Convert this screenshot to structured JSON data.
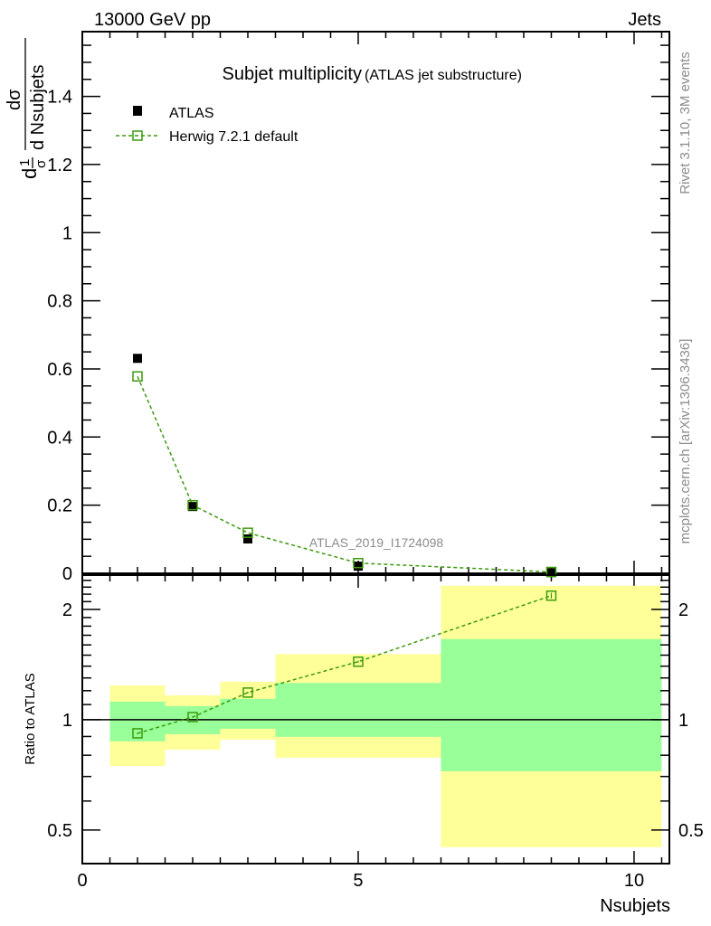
{
  "header": {
    "left": "13000 GeV pp",
    "right": "Jets"
  },
  "side_labels": {
    "rivet": "Rivet 3.1.10,  3M events",
    "mcplots": "mcplots.cern.ch [arXiv:1306.3436]"
  },
  "watermark": "ATLAS_2019_I1724098",
  "ylabel_parts": {
    "d1": "d",
    "one": "1",
    "sigma": "σ",
    "dsigma": "dσ",
    "dvar": "d Nsubjets"
  },
  "colors": {
    "data": "#000000",
    "mc": "#3c9a0c",
    "band_outer": "#ffff99",
    "band_inner": "#99ff99"
  },
  "chart_data": [
    {
      "type": "scatter",
      "title": "Subjet multiplicity",
      "subtitle": "(ATLAS jet substructure)",
      "xlabel": "Nsubjets",
      "ylabel": "1/σ dσ/d Nsubjets",
      "xlim": [
        0,
        10.64
      ],
      "ylim": [
        0,
        1.59
      ],
      "yticks": [
        0,
        0.2,
        0.4,
        0.6,
        0.8,
        1,
        1.2,
        1.4
      ],
      "ytick_labels": [
        "0",
        "0.2",
        "0.4",
        "0.6",
        "0.8",
        "1",
        "1.2",
        "1.4"
      ],
      "legend": {
        "placement": "top-left",
        "entries": [
          "ATLAS",
          "Herwig 7.2.1 default"
        ]
      },
      "bins": [
        [
          0.5,
          1.5
        ],
        [
          1.5,
          2.5
        ],
        [
          2.5,
          3.5
        ],
        [
          3.5,
          6.5
        ],
        [
          6.5,
          10.5
        ]
      ],
      "series": [
        {
          "name": "ATLAS",
          "x": [
            1,
            2,
            3,
            5,
            8.5
          ],
          "values": [
            0.631,
            0.196,
            0.101,
            0.021,
            0.002
          ]
        },
        {
          "name": "Herwig 7.2.1 default",
          "x": [
            1,
            2,
            3,
            5,
            8.5
          ],
          "values": [
            0.578,
            0.2,
            0.119,
            0.03,
            0.004
          ]
        }
      ]
    },
    {
      "type": "line",
      "ylabel": "Ratio to ATLAS",
      "xlabel": "Nsubjets",
      "xlim": [
        0,
        10.64
      ],
      "ylim": [
        0.405,
        2.48
      ],
      "yscale": "log",
      "yticks": [
        0.5,
        1,
        2
      ],
      "ytick_labels": [
        "0.5",
        "1",
        "2"
      ],
      "xticks": [
        0,
        5,
        10
      ],
      "xtick_labels": [
        "0",
        "5",
        "10"
      ],
      "bins": [
        [
          0.5,
          1.5
        ],
        [
          1.5,
          2.5
        ],
        [
          2.5,
          3.5
        ],
        [
          3.5,
          6.5
        ],
        [
          6.5,
          10.5
        ]
      ],
      "band_outer": [
        [
          0.748,
          1.24
        ],
        [
          0.829,
          1.166
        ],
        [
          0.882,
          1.27
        ],
        [
          0.788,
          1.51
        ],
        [
          0.449,
          2.32
        ]
      ],
      "band_inner": [
        [
          0.873,
          1.12
        ],
        [
          0.913,
          1.089
        ],
        [
          0.945,
          1.14
        ],
        [
          0.898,
          1.26
        ],
        [
          0.723,
          1.66
        ]
      ],
      "series": [
        {
          "name": "Herwig 7.2.1 default / ATLAS",
          "x": [
            1,
            2,
            3,
            5,
            8.5
          ],
          "values": [
            0.918,
            1.017,
            1.186,
            1.44,
            2.18
          ],
          "errors": [
            0.005,
            0.005,
            0.006,
            0.01,
            0.04
          ]
        }
      ]
    }
  ]
}
